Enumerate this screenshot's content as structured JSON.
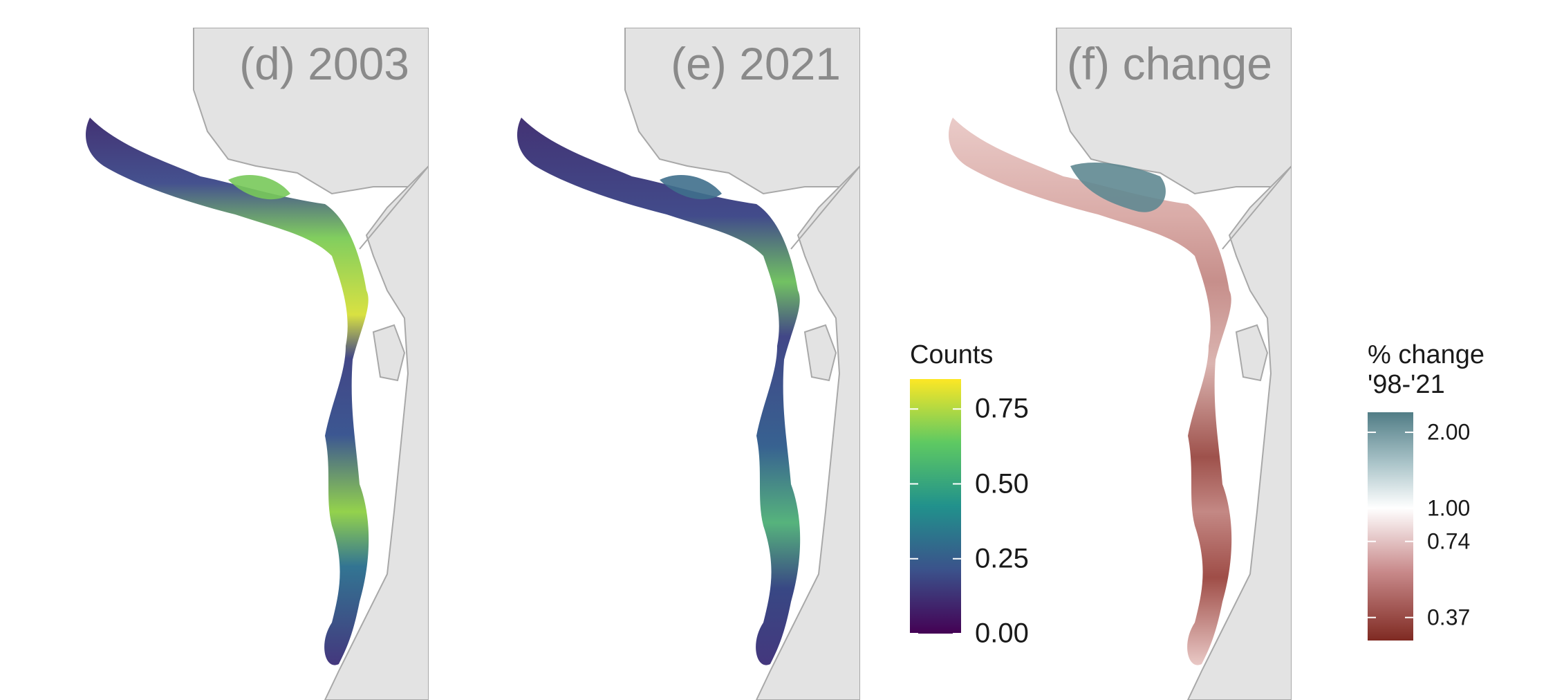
{
  "panels": [
    {
      "id": "d",
      "title": "(d) 2003",
      "fill": "viridis-2003"
    },
    {
      "id": "e",
      "title": "(e) 2021",
      "fill": "viridis-2021"
    },
    {
      "id": "f",
      "title": "(f) change",
      "fill": "change"
    }
  ],
  "counts_legend": {
    "title": "Counts",
    "ticks": [
      {
        "label": "0.75",
        "value": 0.75
      },
      {
        "label": "0.50",
        "value": 0.5
      },
      {
        "label": "0.25",
        "value": 0.25
      },
      {
        "label": "0.00",
        "value": 0.0
      }
    ],
    "min": 0.0,
    "max": 0.85,
    "colors": [
      "#440154",
      "#3b528b",
      "#21918c",
      "#5ec962",
      "#fde725"
    ]
  },
  "change_legend": {
    "title_line1": "% change",
    "title_line2": "'98-'21",
    "ticks": [
      {
        "label": "2.00",
        "value": 2.0
      },
      {
        "label": "1.00",
        "value": 1.0
      },
      {
        "label": "0.74",
        "value": 0.74
      },
      {
        "label": "0.37",
        "value": 0.37
      }
    ],
    "min": 0.3,
    "max": 2.4,
    "colors": [
      "#7f2a22",
      "#c8898a",
      "#ffffff",
      "#a9c3c8",
      "#517d86"
    ]
  },
  "colors": {
    "land": "#e3e3e3",
    "coastline": "#a8a8a8",
    "panel_title": "#8a8a8a"
  }
}
